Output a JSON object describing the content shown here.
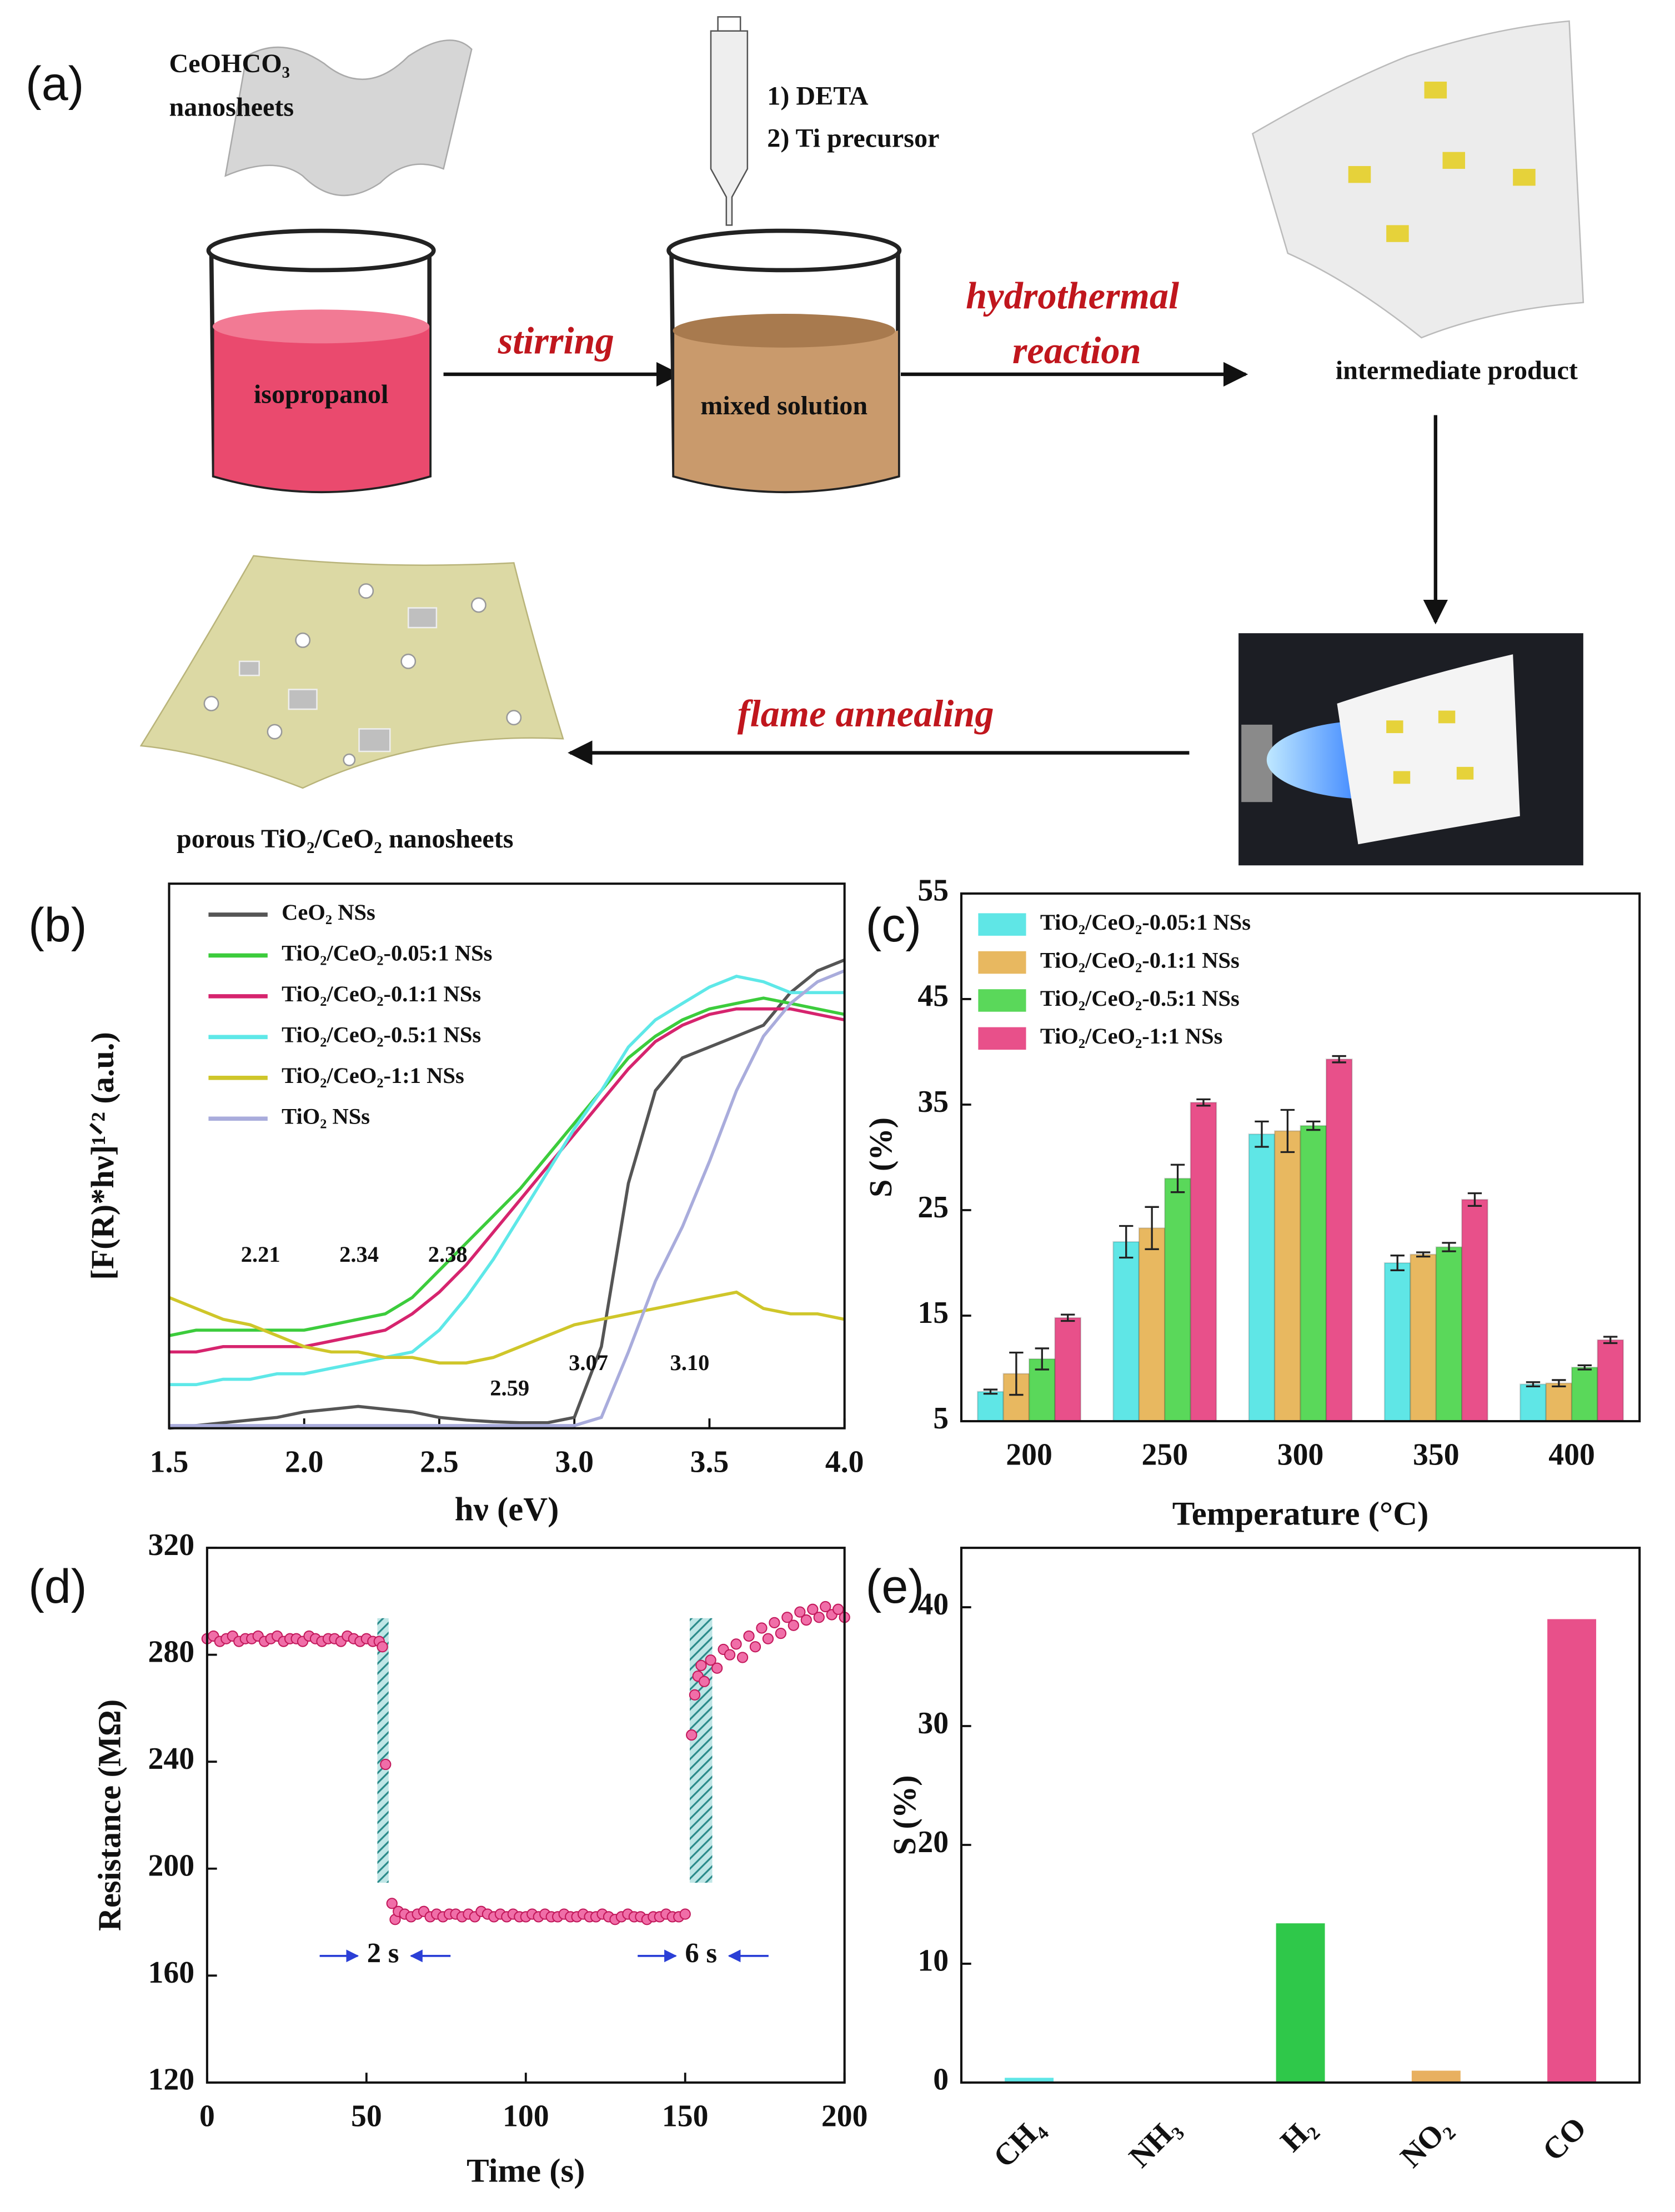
{
  "diagram": {
    "panel_label": "(a)",
    "sheet_label": [
      "CeOHCO₃",
      "nanosheets"
    ],
    "reagents": [
      "1) DETA",
      "2) Ti precursor"
    ],
    "beaker_1": "isopropanol",
    "step_1": "stirring",
    "beaker_2": "mixed solution",
    "step_2": [
      "hydrothermal",
      "reaction"
    ],
    "intermediate": "intermediate product",
    "step_3": "flame annealing",
    "product": "porous TiO₂/CeO₂ nanosheets"
  },
  "chart_data": [
    {
      "type": "line",
      "panel_label": "(b)",
      "x_label": "hν (eV)",
      "y_label": "[F(R)*hν]¹ᐟ² (a.u.)",
      "xlim": [
        1.5,
        4
      ],
      "xticks": [
        1.5,
        {
          "value": 2,
          "label": "2.0"
        },
        2.5,
        {
          "value": 3,
          "label": "3.0"
        },
        3.5,
        {
          "value": 4,
          "label": "4.0"
        }
      ],
      "ylim": [
        0,
        1
      ],
      "x": [
        1.5,
        1.6,
        1.7,
        1.8,
        1.9,
        2.0,
        2.1,
        2.2,
        2.3,
        2.4,
        2.5,
        2.6,
        2.7,
        2.8,
        2.9,
        3.0,
        3.1,
        3.2,
        3.3,
        3.4,
        3.5,
        3.6,
        3.7,
        3.8,
        3.9,
        4.0
      ],
      "legend": "upper left",
      "series": [
        {
          "name": "CeO₂ NSs",
          "color": "#555555",
          "values": [
            0,
            0.005,
            0.01,
            0.015,
            0.02,
            0.03,
            0.035,
            0.04,
            0.035,
            0.03,
            0.02,
            0.015,
            0.012,
            0.01,
            0.01,
            0.02,
            0.15,
            0.45,
            0.62,
            0.68,
            0.7,
            0.72,
            0.74,
            0.8,
            0.84,
            0.86
          ]
        },
        {
          "name": "TiO₂/CeO₂-0.05:1 NSs",
          "color": "#3ccc3c",
          "values": [
            0.17,
            0.18,
            0.18,
            0.18,
            0.18,
            0.18,
            0.19,
            0.2,
            0.21,
            0.24,
            0.29,
            0.34,
            0.39,
            0.44,
            0.5,
            0.56,
            0.62,
            0.68,
            0.72,
            0.75,
            0.77,
            0.78,
            0.79,
            0.78,
            0.77,
            0.76
          ]
        },
        {
          "name": "TiO₂/CeO₂-0.1:1 NSs",
          "color": "#d6246e",
          "values": [
            0.14,
            0.14,
            0.15,
            0.15,
            0.15,
            0.15,
            0.16,
            0.17,
            0.18,
            0.21,
            0.25,
            0.3,
            0.36,
            0.42,
            0.48,
            0.54,
            0.6,
            0.66,
            0.71,
            0.74,
            0.76,
            0.77,
            0.77,
            0.77,
            0.76,
            0.75
          ]
        },
        {
          "name": "TiO₂/CeO₂-0.5:1 NSs",
          "color": "#5ee8e8",
          "values": [
            0.08,
            0.08,
            0.09,
            0.09,
            0.1,
            0.1,
            0.11,
            0.12,
            0.13,
            0.14,
            0.18,
            0.24,
            0.31,
            0.39,
            0.47,
            0.55,
            0.62,
            0.7,
            0.75,
            0.78,
            0.81,
            0.83,
            0.82,
            0.8,
            0.8,
            0.8
          ]
        },
        {
          "name": "TiO₂/CeO₂-1:1 NSs",
          "color": "#cfc62a",
          "values": [
            0.24,
            0.22,
            0.2,
            0.19,
            0.17,
            0.15,
            0.14,
            0.14,
            0.13,
            0.13,
            0.12,
            0.12,
            0.13,
            0.15,
            0.17,
            0.19,
            0.2,
            0.21,
            0.22,
            0.23,
            0.24,
            0.25,
            0.22,
            0.21,
            0.21,
            0.2
          ]
        },
        {
          "name": "TiO₂ NSs",
          "color": "#a9acdc",
          "values": [
            0.005,
            0.005,
            0.005,
            0.005,
            0.005,
            0.005,
            0.005,
            0.005,
            0.005,
            0.005,
            0.005,
            0.005,
            0.005,
            0.005,
            0.005,
            0.005,
            0.02,
            0.14,
            0.27,
            0.37,
            0.49,
            0.62,
            0.72,
            0.78,
            0.82,
            0.84
          ]
        }
      ],
      "annotations": [
        "2.21",
        "2.34",
        "2.38",
        "2.59",
        "3.07",
        "3.10"
      ]
    },
    {
      "type": "bar",
      "panel_label": "(c)",
      "x_label": "Temperature (°C)",
      "y_label": "S (%)",
      "categories": [
        "200",
        "250",
        "300",
        "350",
        "400"
      ],
      "ylim": [
        5,
        55
      ],
      "yticks": [
        5,
        15,
        25,
        35,
        45,
        55
      ],
      "legend": "upper left",
      "series": [
        {
          "name": "TiO₂/CeO₂-0.05:1 NSs",
          "color": "#5fe6e6",
          "values": [
            7.8,
            22,
            32.2,
            20,
            8.5
          ],
          "errors": [
            0.2,
            1.5,
            1.2,
            0.7,
            0.2
          ]
        },
        {
          "name": "TiO₂/CeO₂-0.1:1 NSs",
          "color": "#e8b860",
          "values": [
            9.5,
            23.3,
            32.5,
            20.8,
            8.6
          ],
          "errors": [
            2,
            2,
            2,
            0.2,
            0.3
          ]
        },
        {
          "name": "TiO₂/CeO₂-0.5:1 NSs",
          "color": "#5ad85a",
          "values": [
            10.9,
            28,
            33,
            21.5,
            10.1
          ],
          "errors": [
            1,
            1.3,
            0.4,
            0.4,
            0.2
          ]
        },
        {
          "name": "TiO₂/CeO₂-1:1 NSs",
          "color": "#e8508a",
          "values": [
            14.8,
            35.2,
            39.3,
            26,
            12.7
          ],
          "errors": [
            0.3,
            0.3,
            0.3,
            0.6,
            0.3
          ]
        }
      ]
    },
    {
      "type": "scatter",
      "panel_label": "(d)",
      "x_label": "Time (s)",
      "y_label": "Resistance (MΩ)",
      "color": "#f06ea8",
      "xlim": [
        0,
        200
      ],
      "xticks": [
        0,
        50,
        100,
        150,
        200
      ],
      "ylim": [
        120,
        320
      ],
      "yticks": [
        120,
        160,
        200,
        240,
        280,
        320
      ],
      "x": [
        0,
        2,
        4,
        6,
        8,
        10,
        12,
        14,
        16,
        18,
        20,
        22,
        24,
        26,
        28,
        30,
        32,
        34,
        36,
        38,
        40,
        42,
        44,
        46,
        48,
        50,
        52,
        54,
        55,
        56,
        58,
        59,
        60,
        62,
        64,
        66,
        68,
        70,
        72,
        74,
        76,
        78,
        80,
        82,
        84,
        86,
        88,
        90,
        92,
        94,
        96,
        98,
        100,
        102,
        104,
        106,
        108,
        110,
        112,
        114,
        116,
        118,
        120,
        122,
        124,
        126,
        128,
        130,
        132,
        134,
        136,
        138,
        140,
        142,
        144,
        146,
        148,
        150,
        152,
        153,
        154,
        155,
        156,
        158,
        160,
        162,
        164,
        166,
        168,
        170,
        172,
        174,
        176,
        178,
        180,
        182,
        184,
        186,
        188,
        190,
        192,
        194,
        196,
        198,
        200
      ],
      "values": [
        286,
        287,
        285,
        286,
        287,
        285,
        286,
        286,
        287,
        285,
        286,
        287,
        285,
        286,
        286,
        285,
        287,
        286,
        285,
        286,
        286,
        285,
        287,
        286,
        285,
        286,
        285,
        285,
        283,
        239,
        187,
        181,
        184,
        183,
        182,
        183,
        184,
        182,
        183,
        182,
        183,
        183,
        182,
        183,
        182,
        184,
        183,
        182,
        183,
        182,
        183,
        182,
        182,
        183,
        182,
        183,
        182,
        182,
        183,
        182,
        182,
        183,
        182,
        182,
        183,
        182,
        181,
        182,
        183,
        182,
        182,
        181,
        182,
        182,
        183,
        182,
        182,
        183,
        250,
        265,
        272,
        276,
        270,
        278,
        275,
        282,
        280,
        284,
        279,
        287,
        283,
        290,
        286,
        292,
        288,
        294,
        291,
        296,
        293,
        297,
        294,
        298,
        295,
        297,
        294
      ],
      "annotations": [
        "2 s",
        "6 s"
      ]
    },
    {
      "type": "bar",
      "panel_label": "(e)",
      "y_label": "S (%)",
      "categories": [
        "CH₄",
        "NH₃",
        "H₂",
        "NO₂",
        "CO"
      ],
      "values": [
        0.4,
        0,
        13.4,
        1,
        39
      ],
      "colors": [
        "#5fe6e6",
        "#cccccc",
        "#2fc84a",
        "#e8b060",
        "#e8508a"
      ],
      "ylim": [
        0,
        45
      ],
      "yticks": [
        0,
        10,
        20,
        30,
        40
      ]
    }
  ]
}
